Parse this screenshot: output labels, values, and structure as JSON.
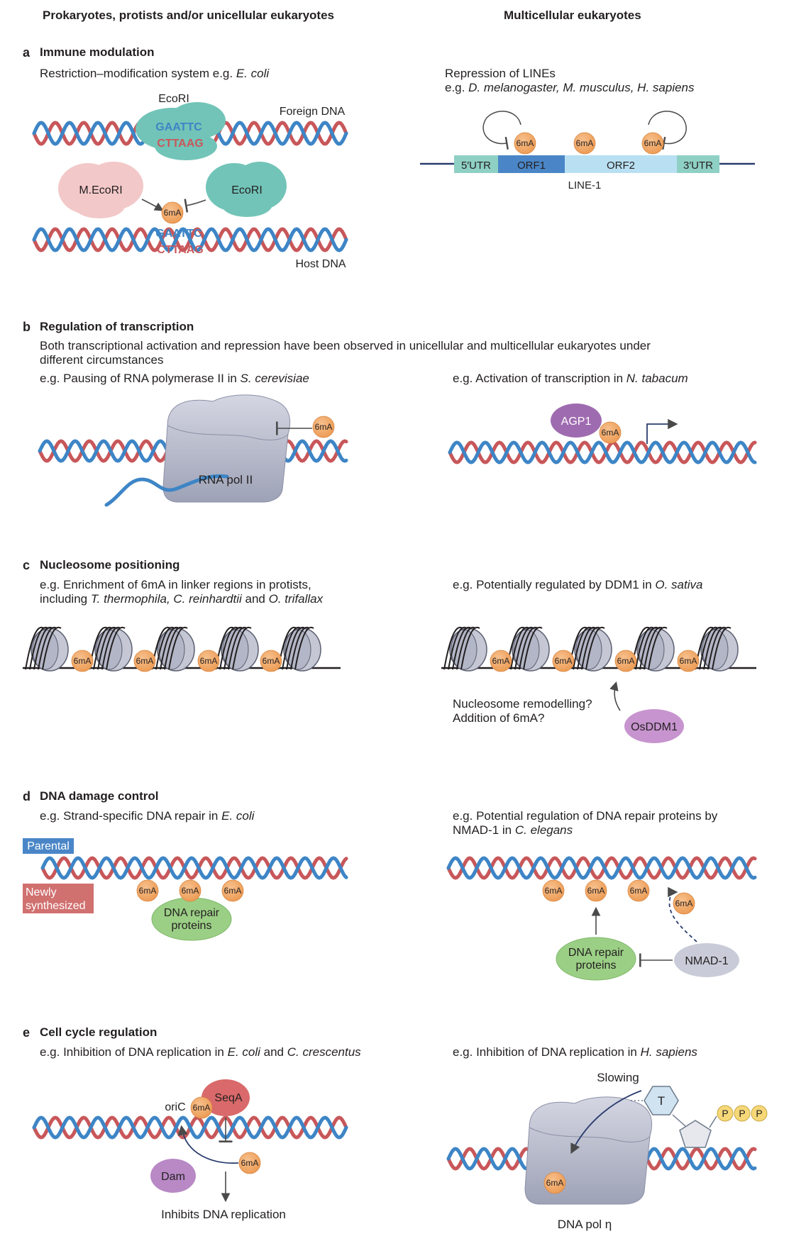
{
  "columns": {
    "left": "Prokaryotes, protists and/or unicellular eukaryotes",
    "right": "Multicellular eukaryotes"
  },
  "mark": "6mA",
  "colors": {
    "dna_blue": "#3d85c6",
    "dna_red": "#c8575a",
    "mark_orange": "#f0a15e",
    "teal": "#67bdb2",
    "pink": "#f2c4c4",
    "purple": "#a979b8",
    "green": "#9bcf85",
    "gray": "#b9bccb",
    "line1_teal": "#8fd0c4",
    "line1_blue": "#4a86c7",
    "line1_light": "#b9e0f2"
  },
  "section_a": {
    "letter": "a",
    "title": "Immune modulation",
    "left_prefix": "Restriction–modification system e.g.",
    "left_species": "E. coli",
    "ecori_top": "EcoRI",
    "foreign_dna": "Foreign DNA",
    "seq_top": "GAATTC",
    "seq_bottom": "CTTAAG",
    "mecori": "M.EcoRI",
    "ecori": "EcoRI",
    "host_dna": "Host DNA",
    "right_line1": "Repression of LINEs",
    "right_prefix": "e.g.",
    "right_species": "D. melanogaster, M. musculus, H. sapiens",
    "utr5": "5′UTR",
    "orf1": "ORF1",
    "orf2": "ORF2",
    "utr3": "3′UTR",
    "line1_label": "LINE-1"
  },
  "section_b": {
    "letter": "b",
    "title": "Regulation of transcription",
    "desc1": "Both transcriptional activation and repression have been observed in unicellular and multicellular eukaryotes under",
    "desc2": "different circumstances",
    "left_prefix": "e.g. Pausing of RNA polymerase II in",
    "left_species": "S. cerevisiae",
    "right_prefix": "e.g. Activation of transcription in",
    "right_species": "N. tabacum",
    "rnapol": "RNA pol II",
    "agp1": "AGP1"
  },
  "section_c": {
    "letter": "c",
    "title": "Nucleosome positioning",
    "left_line1": "e.g. Enrichment of 6mA in linker regions in protists,",
    "left_line2_prefix": "including",
    "left_line2_species": "T. thermophila, C. reinhardtii",
    "left_line2_and": "and",
    "left_line2_species2": "O. trifallax",
    "right_prefix": "e.g. Potentially regulated by DDM1 in",
    "right_species": "O. sativa",
    "q1": "Nucleosome remodelling?",
    "q2": "Addition of 6mA?",
    "osddm1": "OsDDM1"
  },
  "section_d": {
    "letter": "d",
    "title": "DNA damage control",
    "left_prefix": "e.g. Strand-specific DNA repair in",
    "left_species": "E. coli",
    "parental": "Parental",
    "newly1": "Newly",
    "newly2": "synthesized",
    "repair1": "DNA repair",
    "repair2": "proteins",
    "right_line1": "e.g. Potential regulation of DNA repair proteins by",
    "right_line2_prefix": "NMAD-1 in",
    "right_line2_species": "C. elegans",
    "nmad1": "NMAD-1"
  },
  "section_e": {
    "letter": "e",
    "title": "Cell cycle regulation",
    "left_prefix": "e.g. Inhibition of DNA replication in",
    "left_species": "E. coli",
    "left_and": "and",
    "left_species2": "C. crescentus",
    "right_prefix": "e.g. Inhibition of DNA replication in",
    "right_species": "H. sapiens",
    "oric": "oriC",
    "seqa": "SeqA",
    "dam": "Dam",
    "inhibits": "Inhibits DNA replication",
    "slowing": "Slowing",
    "thymine": "T",
    "phosphate": "P",
    "dnapol": "DNA pol η"
  }
}
